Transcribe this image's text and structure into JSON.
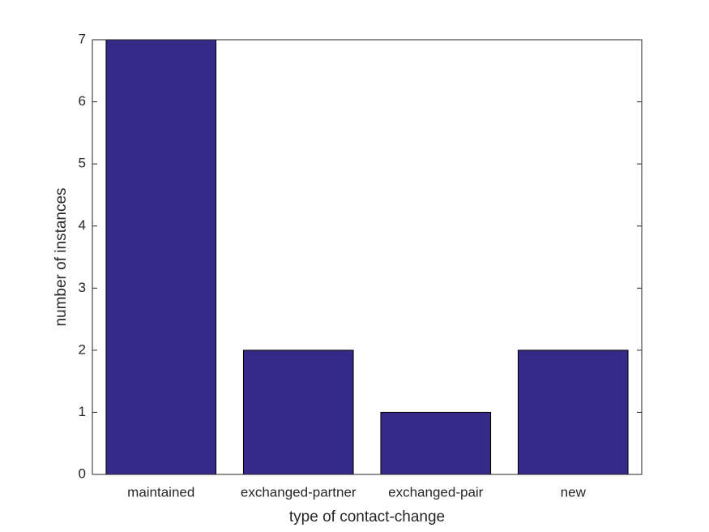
{
  "chart_data": {
    "type": "bar",
    "categories": [
      "maintained",
      "exchanged-partner",
      "exchanged-pair",
      "new"
    ],
    "values": [
      7,
      2,
      1,
      2
    ],
    "color": "#352a87",
    "xlabel": "type of contact-change",
    "ylabel": "number of instances",
    "ylim": [
      0,
      7
    ],
    "yticks": [
      0,
      1,
      2,
      3,
      4,
      5,
      6,
      7
    ],
    "grid": false
  }
}
